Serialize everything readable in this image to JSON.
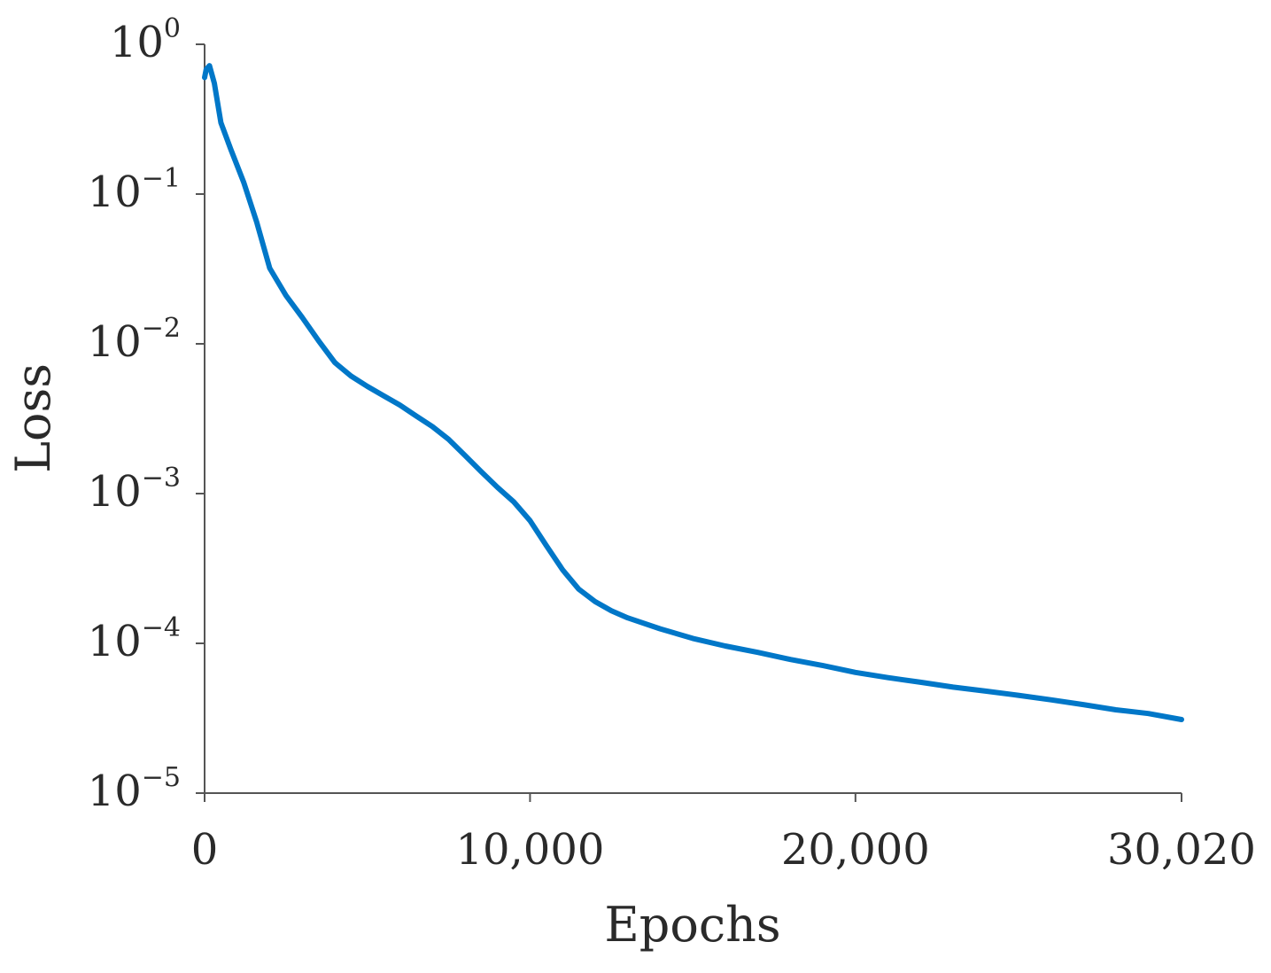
{
  "chart_data": {
    "type": "line",
    "title": "",
    "xlabel": "Epochs",
    "ylabel": "Loss",
    "xlim": [
      0,
      30020
    ],
    "ylim": [
      1e-05,
      1
    ],
    "y_scale": "log",
    "grid": false,
    "legend": "none",
    "x_ticks": [
      {
        "value": 0,
        "label": "0"
      },
      {
        "value": 10000,
        "label": "10,000"
      },
      {
        "value": 20000,
        "label": "20,000"
      },
      {
        "value": 30020,
        "label": "30,020"
      }
    ],
    "y_ticks": [
      {
        "value": 1,
        "base": "10",
        "exp": "0"
      },
      {
        "value": 0.1,
        "base": "10",
        "exp": "−1"
      },
      {
        "value": 0.01,
        "base": "10",
        "exp": "−2"
      },
      {
        "value": 0.001,
        "base": "10",
        "exp": "−3"
      },
      {
        "value": 0.0001,
        "base": "10",
        "exp": "−4"
      },
      {
        "value": 1e-05,
        "base": "10",
        "exp": "−5"
      }
    ],
    "series": [
      {
        "color": "#0077c8",
        "x": [
          0,
          50,
          150,
          300,
          500,
          800,
          1200,
          1600,
          2000,
          2500,
          3000,
          3500,
          4000,
          4500,
          5000,
          5500,
          6000,
          6500,
          7000,
          7500,
          8000,
          8500,
          9000,
          9500,
          10000,
          10500,
          11000,
          11500,
          12000,
          12500,
          13000,
          14000,
          15000,
          16000,
          17000,
          18000,
          19000,
          20000,
          21000,
          22000,
          23000,
          24000,
          25000,
          26000,
          27000,
          28000,
          29000,
          30020
        ],
        "y": [
          0.6,
          0.68,
          0.72,
          0.55,
          0.3,
          0.2,
          0.12,
          0.065,
          0.032,
          0.021,
          0.015,
          0.0105,
          0.0075,
          0.0061,
          0.0052,
          0.0045,
          0.0039,
          0.0033,
          0.0028,
          0.0023,
          0.0018,
          0.0014,
          0.0011,
          0.00088,
          0.00066,
          0.00045,
          0.00031,
          0.00023,
          0.00019,
          0.000165,
          0.000148,
          0.000125,
          0.000108,
          9.6e-05,
          8.7e-05,
          7.8e-05,
          7.1e-05,
          6.4e-05,
          5.9e-05,
          5.5e-05,
          5.1e-05,
          4.8e-05,
          4.5e-05,
          4.2e-05,
          3.9e-05,
          3.6e-05,
          3.4e-05,
          3.1e-05
        ]
      }
    ]
  }
}
